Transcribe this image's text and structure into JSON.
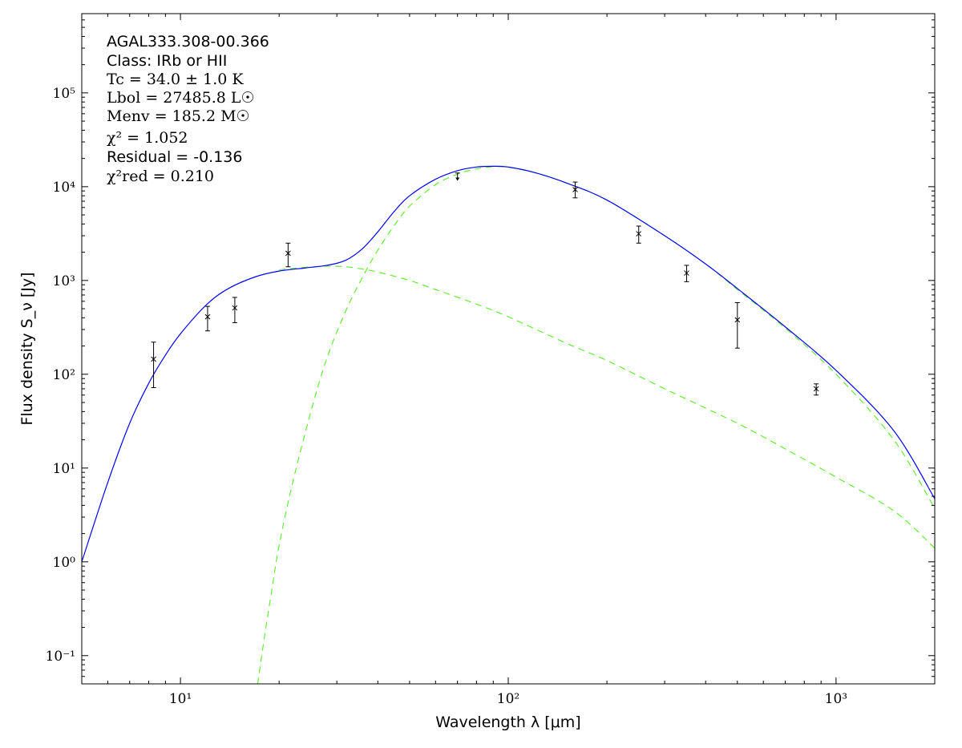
{
  "chart_data": {
    "type": "scatter",
    "xlabel": "Wavelength λ [μm]",
    "ylabel": "Flux density S_ν [Jy]",
    "xscale": "log",
    "yscale": "log",
    "xlim": [
      5,
      2000
    ],
    "ylim": [
      0.05,
      700000
    ],
    "xticks": [
      {
        "value": 10,
        "label": "10¹"
      },
      {
        "value": 100,
        "label": "10²"
      },
      {
        "value": 1000,
        "label": "10³"
      }
    ],
    "yticks": [
      {
        "value": 0.1,
        "label": "10⁻¹"
      },
      {
        "value": 1,
        "label": "10⁰"
      },
      {
        "value": 10,
        "label": "10¹"
      },
      {
        "value": 100,
        "label": "10²"
      },
      {
        "value": 1000,
        "label": "10³"
      },
      {
        "value": 10000,
        "label": "10⁴"
      },
      {
        "value": 100000,
        "label": "10⁵"
      }
    ],
    "grid": false,
    "annotations": [
      {
        "text": "AGAL333.308-00.366",
        "style": "sans"
      },
      {
        "text": "Class: IRb or HII",
        "style": "sans"
      },
      {
        "text": "Tc = 34.0 ± 1.0 K",
        "style": "math"
      },
      {
        "text": "Lbol = 27485.8 L☉",
        "style": "math"
      },
      {
        "text": "Menv = 185.2 M☉",
        "style": "math"
      },
      {
        "text": "χ² = 1.052",
        "style": "math"
      },
      {
        "text": "Residual = -0.136",
        "style": "sans"
      },
      {
        "text": "χ²red = 0.210",
        "style": "math"
      }
    ],
    "series": [
      {
        "kind": "measurements",
        "marker": "x",
        "color": "#000000",
        "points": [
          {
            "x": 8.28,
            "y": 145,
            "yerr_low": 72,
            "yerr_high": 220
          },
          {
            "x": 12.1,
            "y": 410,
            "yerr_low": 290,
            "yerr_high": 530
          },
          {
            "x": 14.65,
            "y": 510,
            "yerr_low": 355,
            "yerr_high": 660
          },
          {
            "x": 21.3,
            "y": 1950,
            "yerr_low": 1400,
            "yerr_high": 2500
          },
          {
            "x": 160,
            "y": 9300,
            "yerr_low": 7600,
            "yerr_high": 11200
          },
          {
            "x": 250,
            "y": 3150,
            "yerr_low": 2500,
            "yerr_high": 3800
          },
          {
            "x": 350,
            "y": 1200,
            "yerr_low": 970,
            "yerr_high": 1450
          },
          {
            "x": 500,
            "y": 380,
            "yerr_low": 190,
            "yerr_high": 580
          },
          {
            "x": 870,
            "y": 70,
            "yerr_low": 60,
            "yerr_high": 79
          }
        ]
      },
      {
        "kind": "upper_limit",
        "marker": "arrow-down",
        "color": "#000000",
        "points": [
          {
            "x": 70,
            "y": 14000,
            "arrow_to": 11800
          }
        ]
      },
      {
        "kind": "total_fit",
        "style": "solid",
        "color": "#0000ff",
        "x": [
          5,
          6,
          7,
          8,
          9,
          10,
          12,
          14,
          17,
          20,
          24,
          28,
          32,
          36,
          40,
          45,
          50,
          60,
          70,
          80,
          90,
          100,
          120,
          150,
          200,
          300,
          400,
          500,
          700,
          1000,
          1500,
          2000
        ],
        "y": [
          1.0,
          7.0,
          30,
          80,
          160,
          270,
          550,
          820,
          1100,
          1260,
          1360,
          1450,
          1650,
          2200,
          3300,
          5500,
          8000,
          12000,
          14800,
          16200,
          16500,
          16200,
          14200,
          11000,
          7200,
          3000,
          1500,
          820,
          320,
          110,
          25,
          4.7
        ]
      },
      {
        "kind": "cold_component",
        "style": "dashed",
        "color": "#55ee22",
        "x": [
          17.2,
          18,
          19,
          20,
          22,
          25,
          28,
          32,
          36,
          40,
          45,
          50,
          60,
          70,
          80,
          90,
          100,
          120,
          150,
          200,
          300,
          400,
          500,
          700,
          1000,
          1500,
          2000
        ],
        "y": [
          0.05,
          0.15,
          0.5,
          1.5,
          7,
          40,
          150,
          480,
          1100,
          2100,
          3900,
          6200,
          10500,
          13600,
          15500,
          16300,
          16100,
          14100,
          11000,
          7200,
          3000,
          1500,
          800,
          310,
          100,
          20,
          3.7
        ]
      },
      {
        "kind": "warm_component",
        "style": "dashed",
        "color": "#55ee22",
        "x": [
          20,
          24,
          28,
          32,
          36,
          40,
          50,
          60,
          80,
          100,
          150,
          200,
          300,
          500,
          700,
          1000,
          1500,
          2000
        ],
        "y": [
          1300,
          1380,
          1420,
          1400,
          1320,
          1230,
          1000,
          800,
          560,
          410,
          215,
          140,
          70,
          30,
          16,
          8,
          3.5,
          1.4
        ]
      }
    ]
  }
}
